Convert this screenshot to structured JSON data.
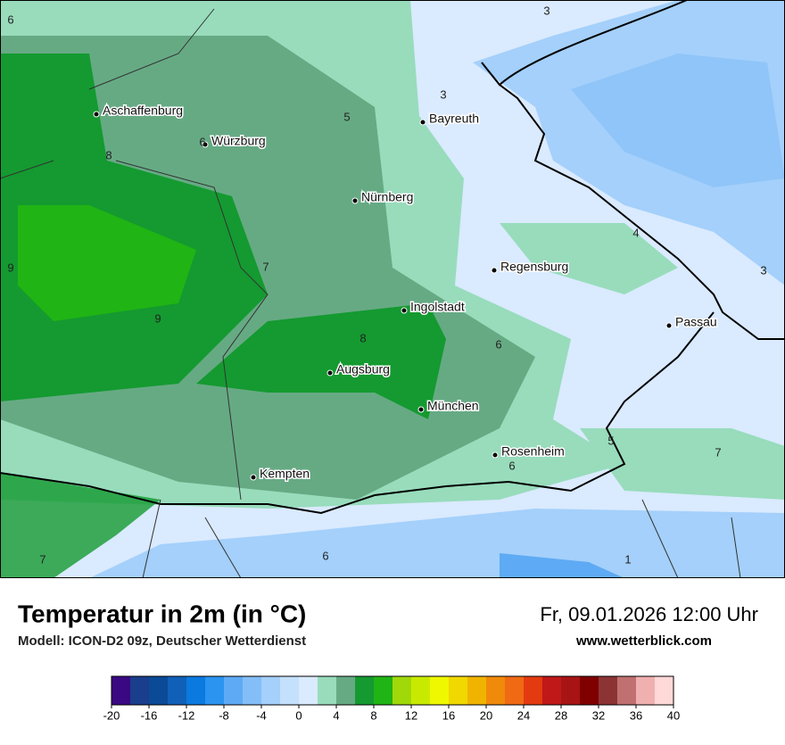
{
  "map": {
    "cities": [
      "Aschaffenburg",
      "Würzburg",
      "Bayreuth",
      "Nürnberg",
      "Regensburg",
      "Ingolstadt",
      "Passau",
      "Augsburg",
      "München",
      "Rosenheim",
      "Kempten"
    ],
    "contour_labels": [
      3,
      6,
      3,
      5,
      6,
      8,
      9,
      7,
      9,
      8,
      4,
      3,
      6,
      5,
      7,
      6,
      6,
      7,
      1
    ]
  },
  "footer": {
    "title": "Temperatur in 2m (in °C)",
    "model": "Modell: ICON-D2 09z, Deutscher Wetterdienst",
    "datetime": "Fr, 09.01.2026 12:00 Uhr",
    "website": "www.wetterblick.com"
  },
  "colorbar": {
    "range": [
      -20,
      40
    ],
    "ticks": [
      -20,
      -16,
      -12,
      -8,
      -4,
      0,
      4,
      8,
      12,
      16,
      20,
      24,
      28,
      32,
      36,
      40
    ],
    "colors": [
      "#3a0883",
      "#1a3d8c",
      "#0a4a96",
      "#1060b8",
      "#0a7ae0",
      "#2a94f0",
      "#5eaaf4",
      "#84bef8",
      "#a4d0fb",
      "#c4e0fd",
      "#daeaff",
      "#98dcbc",
      "#66aa84",
      "#149a30",
      "#20b414",
      "#a0d80a",
      "#c8ea00",
      "#f0f800",
      "#f0d800",
      "#f0b400",
      "#f08a0a",
      "#f06a14",
      "#e43a10",
      "#c01818",
      "#a81414",
      "#800000",
      "#8c3434",
      "#c07070",
      "#f0b0b0",
      "#ffd8d8"
    ]
  }
}
